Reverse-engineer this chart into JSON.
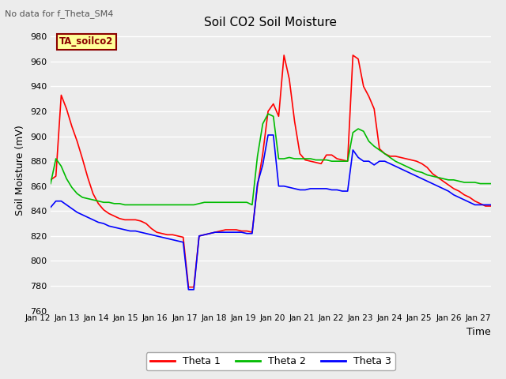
{
  "title": "Soil CO2 Soil Moisture",
  "subtitle": "No data for f_Theta_SM4",
  "xlabel": "Time",
  "ylabel": "Soil Moisture (mV)",
  "ylim": [
    760,
    985
  ],
  "yticks": [
    760,
    780,
    800,
    820,
    840,
    860,
    880,
    900,
    920,
    940,
    960,
    980
  ],
  "legend_box_label": "TA_soilco2",
  "legend_box_color": "#ffff99",
  "legend_box_border": "#8B0000",
  "line_colors": [
    "#ff0000",
    "#00bb00",
    "#0000ff"
  ],
  "line_labels": [
    "Theta 1",
    "Theta 2",
    "Theta 3"
  ],
  "x_tick_labels": [
    "Jan 12",
    "Jan 13",
    "Jan 14",
    "Jan 15",
    "Jan 16",
    "Jan 17",
    "Jan 18",
    "Jan 19",
    "Jan 20",
    "Jan 21",
    "Jan 22",
    "Jan 23",
    "Jan 24",
    "Jan 25",
    "Jan 26",
    "Jan 27"
  ],
  "bg_color": "#ececec",
  "grid_color": "#ffffff",
  "theta1": [
    865,
    868,
    933,
    922,
    908,
    896,
    882,
    867,
    854,
    846,
    841,
    838,
    836,
    834,
    833,
    833,
    833,
    832,
    830,
    826,
    823,
    822,
    821,
    821,
    820,
    819,
    779,
    779,
    820,
    821,
    822,
    823,
    824,
    825,
    825,
    825,
    824,
    824,
    823,
    860,
    886,
    920,
    926,
    916,
    965,
    946,
    912,
    886,
    881,
    880,
    879,
    878,
    885,
    885,
    882,
    881,
    880,
    965,
    962,
    940,
    932,
    922,
    890,
    886,
    884,
    884,
    883,
    882,
    881,
    880,
    878,
    875,
    870,
    867,
    864,
    861,
    858,
    856,
    853,
    851,
    848,
    846,
    844,
    844
  ],
  "theta2": [
    862,
    882,
    876,
    866,
    859,
    854,
    851,
    850,
    849,
    848,
    847,
    847,
    846,
    846,
    845,
    845,
    845,
    845,
    845,
    845,
    845,
    845,
    845,
    845,
    845,
    845,
    845,
    845,
    846,
    847,
    847,
    847,
    847,
    847,
    847,
    847,
    847,
    847,
    845,
    884,
    910,
    918,
    916,
    882,
    882,
    883,
    882,
    882,
    882,
    882,
    881,
    881,
    881,
    880,
    880,
    880,
    880,
    903,
    906,
    904,
    896,
    892,
    889,
    886,
    883,
    880,
    878,
    876,
    874,
    872,
    871,
    869,
    868,
    867,
    866,
    865,
    865,
    864,
    863,
    863,
    863,
    862,
    862,
    862
  ],
  "theta3": [
    843,
    848,
    848,
    845,
    842,
    839,
    837,
    835,
    833,
    831,
    830,
    828,
    827,
    826,
    825,
    824,
    824,
    823,
    822,
    821,
    820,
    819,
    818,
    817,
    816,
    815,
    777,
    777,
    820,
    821,
    822,
    823,
    823,
    823,
    823,
    823,
    823,
    822,
    822,
    862,
    877,
    901,
    901,
    860,
    860,
    859,
    858,
    857,
    857,
    858,
    858,
    858,
    858,
    857,
    857,
    856,
    856,
    889,
    883,
    880,
    880,
    877,
    880,
    880,
    878,
    876,
    874,
    872,
    870,
    868,
    866,
    864,
    862,
    860,
    858,
    856,
    853,
    851,
    849,
    847,
    845,
    845,
    845,
    845
  ]
}
